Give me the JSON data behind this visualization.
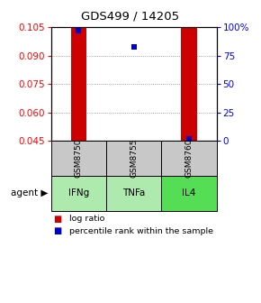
{
  "title": "GDS499 / 14205",
  "samples": [
    "GSM8750",
    "GSM8755",
    "GSM8760"
  ],
  "agents": [
    "IFNg",
    "TNFa",
    "IL4"
  ],
  "ylim_left": [
    0.045,
    0.105
  ],
  "yticks_left": [
    0.045,
    0.06,
    0.075,
    0.09,
    0.105
  ],
  "yticks_right": [
    0,
    25,
    50,
    75,
    100
  ],
  "ytick_right_labels": [
    "0",
    "25",
    "50",
    "75",
    "100%"
  ],
  "ylim_right": [
    0,
    100
  ],
  "bar_tops": [
    0.105,
    0.045,
    0.105
  ],
  "bar_bottoms": [
    0.045,
    0.045,
    0.045
  ],
  "percentile_values": [
    97,
    83,
    2
  ],
  "bar_color": "#CC0000",
  "percentile_color": "#0000CC",
  "bar_width": 0.28,
  "sample_color": "#C8C8C8",
  "agent_colors": [
    "#AEEAAE",
    "#AEEAAE",
    "#55DD55"
  ],
  "legend_red": "log ratio",
  "legend_blue": "percentile rank within the sample",
  "title_fontsize": 9.5,
  "tick_fontsize": 7.5,
  "legend_fontsize": 6.8
}
